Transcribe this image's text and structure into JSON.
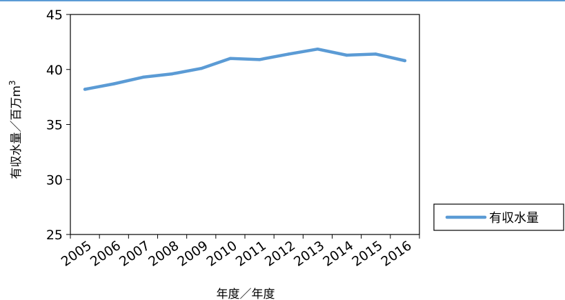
{
  "chart_data": {
    "type": "line",
    "title": "",
    "xlabel": "年度／年度",
    "ylabel": "有収水量／百万m3",
    "ylabel_base": "有収水量／百万m",
    "ylabel_sup": "3",
    "categories": [
      "2005",
      "2006",
      "2007",
      "2008",
      "2009",
      "2010",
      "2011",
      "2012",
      "2013",
      "2014",
      "2015",
      "2016"
    ],
    "series": [
      {
        "name": "有収水量",
        "values": [
          38.2,
          38.7,
          39.3,
          39.6,
          40.1,
          41.0,
          40.9,
          41.4,
          41.85,
          41.3,
          41.4,
          40.8
        ]
      }
    ],
    "ylim": [
      25,
      45
    ],
    "yticks": [
      "25",
      "30",
      "35",
      "40",
      "45"
    ],
    "grid": false,
    "legend_position": "right",
    "colors": {
      "line": "#5b9bd5",
      "axis": "#000000",
      "accent": "#5b9bd5"
    }
  }
}
